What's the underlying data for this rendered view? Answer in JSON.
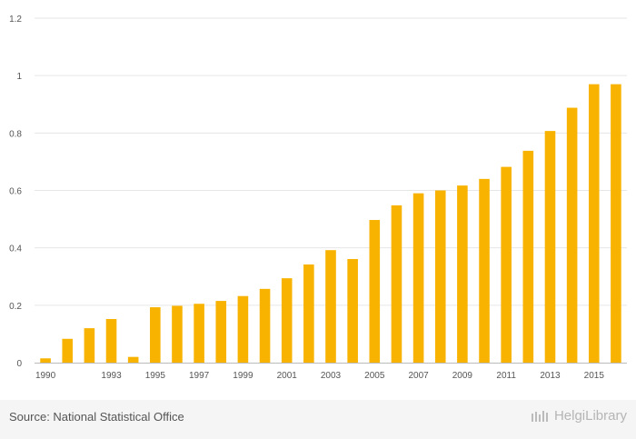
{
  "chart_data": {
    "type": "bar",
    "title": "",
    "xlabel": "",
    "ylabel": "",
    "ylim": [
      0,
      1.2
    ],
    "yticks": [
      "0",
      "0.2",
      "0.4",
      "0.6",
      "0.8",
      "1",
      "1.2"
    ],
    "xtick_labels": [
      "1990",
      "1993",
      "1995",
      "1997",
      "1999",
      "2001",
      "2003",
      "2005",
      "2007",
      "2009",
      "2011",
      "2013",
      "2015"
    ],
    "categories": [
      "1990",
      "1991",
      "1992",
      "1993",
      "1994",
      "1995",
      "1996",
      "1997",
      "1998",
      "1999",
      "2000",
      "2001",
      "2002",
      "2003",
      "2004",
      "2005",
      "2006",
      "2007",
      "2008",
      "2009",
      "2010",
      "2011",
      "2012",
      "2013",
      "2014",
      "2015",
      "2016"
    ],
    "values": [
      0.015,
      0.083,
      0.12,
      0.152,
      0.02,
      0.193,
      0.198,
      0.205,
      0.215,
      0.232,
      0.257,
      0.294,
      0.342,
      0.392,
      0.361,
      0.497,
      0.548,
      0.59,
      0.6,
      0.617,
      0.64,
      0.682,
      0.738,
      0.807,
      0.888,
      0.97,
      0.97
    ],
    "bar_color": "#f7b300"
  },
  "footer": {
    "source": "Source: National Statistical Office",
    "brand": "HelgiLibrary"
  }
}
